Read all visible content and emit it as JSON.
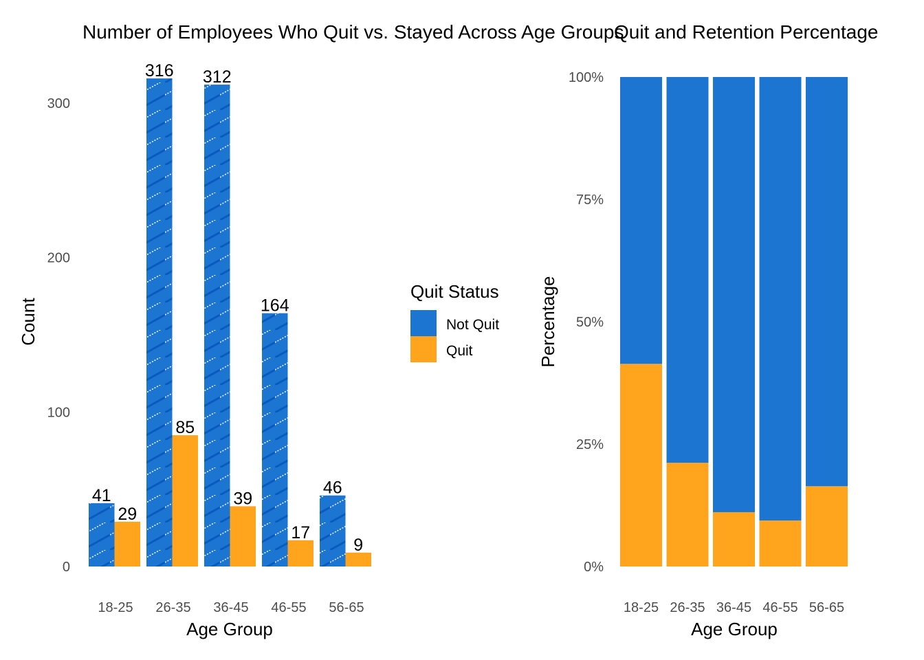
{
  "chart_data": [
    {
      "type": "bar",
      "title": "Number of Employees Who Quit vs. Stayed Across Age Groups",
      "xlabel": "Age Group",
      "ylabel": "Count",
      "categories": [
        "18-25",
        "26-35",
        "36-45",
        "46-55",
        "56-65"
      ],
      "ylim": [
        0,
        330
      ],
      "yticks": [
        0,
        100,
        200,
        300
      ],
      "grid": false,
      "series": [
        {
          "name": "Not Quit",
          "color": "#1C75D1",
          "pattern": "diagonal-hatch",
          "values": [
            41,
            316,
            312,
            164,
            46
          ]
        },
        {
          "name": "Quit",
          "color": "#FFA41C",
          "values": [
            29,
            85,
            39,
            17,
            9
          ]
        }
      ]
    },
    {
      "type": "bar",
      "stacked": true,
      "title": "Quit and Retention Percentage",
      "xlabel": "Age Group",
      "ylabel": "Percentage",
      "categories": [
        "18-25",
        "26-35",
        "36-45",
        "46-55",
        "56-65"
      ],
      "ylim": [
        0,
        100
      ],
      "yticks": [
        "0%",
        "25%",
        "50%",
        "75%",
        "100%"
      ],
      "grid": false,
      "series": [
        {
          "name": "Quit",
          "color": "#FFA41C",
          "values": [
            41.4,
            21.2,
            11.1,
            9.4,
            16.4
          ]
        },
        {
          "name": "Not Quit",
          "color": "#1C75D1",
          "values": [
            58.6,
            78.8,
            88.9,
            90.6,
            83.6
          ]
        }
      ]
    }
  ],
  "legend": {
    "title": "Quit Status",
    "position": "center-between-panels",
    "items": [
      {
        "label": "Not Quit",
        "color": "#1C75D1"
      },
      {
        "label": "Quit",
        "color": "#FFA41C"
      }
    ]
  }
}
